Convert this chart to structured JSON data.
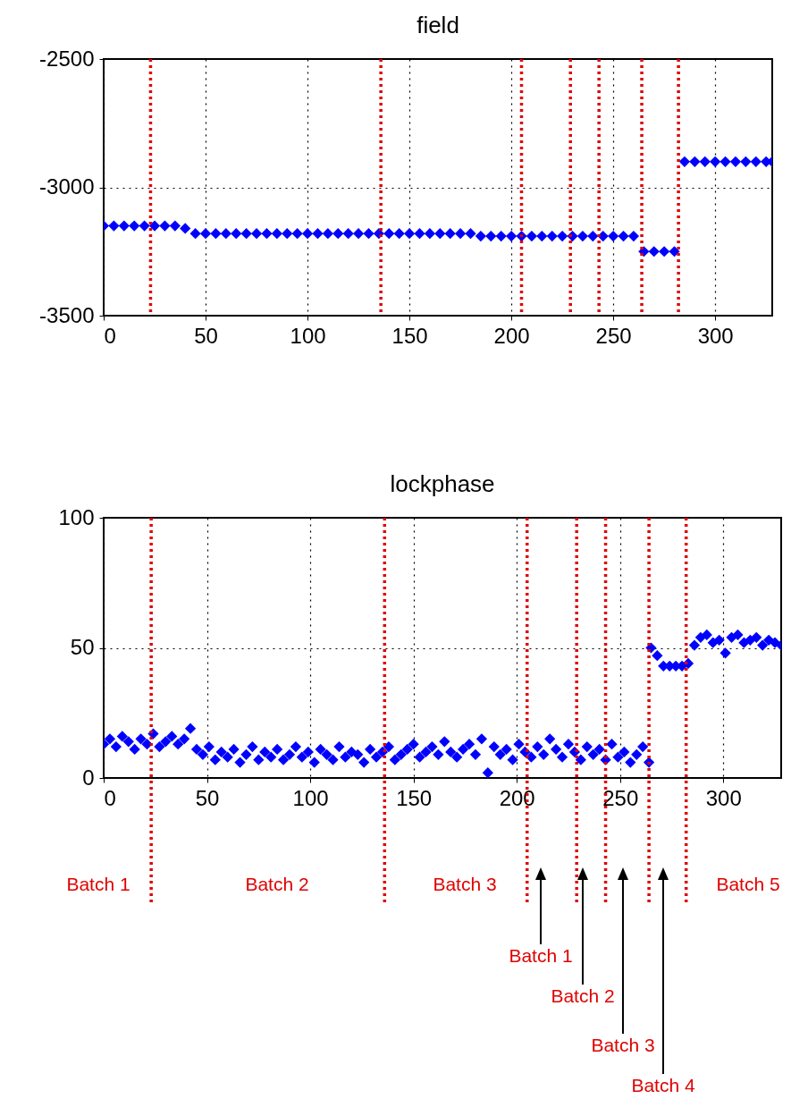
{
  "chart_data": [
    {
      "type": "scatter",
      "title": "field",
      "marker": "diamond",
      "grid": true,
      "xlim": [
        0,
        328
      ],
      "xticks": [
        0,
        50,
        100,
        150,
        200,
        250,
        300
      ],
      "ylim": [
        -3500,
        -2500
      ],
      "yticks": [
        -3500,
        -3000,
        -2500
      ],
      "series": [
        {
          "color": "#0000ff",
          "x": [
            0,
            5,
            10,
            15,
            20,
            25,
            30,
            35,
            40,
            45,
            50,
            55,
            60,
            65,
            70,
            75,
            80,
            85,
            90,
            95,
            100,
            105,
            110,
            115,
            120,
            125,
            130,
            135,
            140,
            145,
            150,
            155,
            160,
            165,
            170,
            175,
            180,
            185,
            190,
            195,
            200,
            205,
            210,
            215,
            220,
            225,
            230,
            235,
            240,
            245,
            250,
            255,
            260,
            265,
            270,
            275,
            280,
            285,
            290,
            295,
            300,
            305,
            310,
            315,
            320,
            325,
            328
          ],
          "values": [
            -3150,
            -3150,
            -3150,
            -3150,
            -3150,
            -3150,
            -3150,
            -3150,
            -3160,
            -3180,
            -3180,
            -3180,
            -3180,
            -3180,
            -3180,
            -3180,
            -3180,
            -3180,
            -3180,
            -3180,
            -3180,
            -3180,
            -3180,
            -3180,
            -3180,
            -3180,
            -3180,
            -3180,
            -3180,
            -3180,
            -3180,
            -3180,
            -3180,
            -3180,
            -3180,
            -3180,
            -3180,
            -3190,
            -3190,
            -3190,
            -3190,
            -3190,
            -3190,
            -3190,
            -3190,
            -3190,
            -3190,
            -3190,
            -3190,
            -3190,
            -3190,
            -3190,
            -3190,
            -3250,
            -3250,
            -3250,
            -3250,
            -2900,
            -2900,
            -2900,
            -2900,
            -2900,
            -2900,
            -2900,
            -2900,
            -2900,
            -2900
          ]
        }
      ],
      "ref_lines": [
        {
          "axis": "x",
          "value": 23,
          "color": "#e00000",
          "line_style": "dotted"
        },
        {
          "axis": "x",
          "value": 136,
          "color": "#e00000",
          "line_style": "dotted"
        },
        {
          "axis": "x",
          "value": 205,
          "color": "#e00000",
          "line_style": "dotted"
        },
        {
          "axis": "x",
          "value": 229,
          "color": "#e00000",
          "line_style": "dotted"
        },
        {
          "axis": "x",
          "value": 243,
          "color": "#e00000",
          "line_style": "dotted"
        },
        {
          "axis": "x",
          "value": 264,
          "color": "#e00000",
          "line_style": "dotted"
        },
        {
          "axis": "x",
          "value": 282,
          "color": "#e00000",
          "line_style": "dotted"
        }
      ]
    },
    {
      "type": "scatter",
      "title": "lockphase",
      "marker": "diamond",
      "grid": true,
      "xlim": [
        0,
        328
      ],
      "xticks": [
        0,
        50,
        100,
        150,
        200,
        250,
        300
      ],
      "ylim": [
        0,
        100
      ],
      "yticks": [
        0,
        50,
        100
      ],
      "series": [
        {
          "color": "#0000ff",
          "x": [
            0,
            3,
            6,
            9,
            12,
            15,
            18,
            21,
            24,
            27,
            30,
            33,
            36,
            39,
            42,
            45,
            48,
            51,
            54,
            57,
            60,
            63,
            66,
            69,
            72,
            75,
            78,
            81,
            84,
            87,
            90,
            93,
            96,
            99,
            102,
            105,
            108,
            111,
            114,
            117,
            120,
            123,
            126,
            129,
            132,
            135,
            138,
            141,
            144,
            147,
            150,
            153,
            156,
            159,
            162,
            165,
            168,
            171,
            174,
            177,
            180,
            183,
            186,
            189,
            192,
            195,
            198,
            201,
            204,
            207,
            210,
            213,
            216,
            219,
            222,
            225,
            228,
            231,
            234,
            237,
            240,
            243,
            246,
            249,
            252,
            255,
            258,
            261,
            264,
            265,
            268,
            271,
            274,
            277,
            280,
            283,
            286,
            289,
            292,
            295,
            298,
            301,
            304,
            307,
            310,
            313,
            316,
            319,
            322,
            325,
            328
          ],
          "values": [
            13,
            15,
            12,
            16,
            14,
            11,
            15,
            13,
            17,
            12,
            14,
            16,
            13,
            15,
            19,
            11,
            9,
            12,
            7,
            10,
            8,
            11,
            6,
            9,
            12,
            7,
            10,
            8,
            11,
            7,
            9,
            12,
            8,
            10,
            6,
            11,
            9,
            7,
            12,
            8,
            10,
            9,
            6,
            11,
            8,
            10,
            12,
            7,
            9,
            11,
            13,
            8,
            10,
            12,
            9,
            14,
            10,
            8,
            11,
            13,
            9,
            15,
            2,
            12,
            9,
            11,
            7,
            13,
            10,
            8,
            12,
            9,
            15,
            11,
            8,
            13,
            10,
            7,
            12,
            9,
            11,
            7,
            13,
            8,
            10,
            6,
            9,
            12,
            6,
            50,
            47,
            43,
            43,
            43,
            43,
            44,
            51,
            54,
            55,
            52,
            53,
            48,
            54,
            55,
            52,
            53,
            54,
            51,
            53,
            52,
            51
          ]
        }
      ],
      "ref_lines": [
        {
          "axis": "x",
          "value": 23,
          "color": "#e00000",
          "line_style": "dotted"
        },
        {
          "axis": "x",
          "value": 136,
          "color": "#e00000",
          "line_style": "dotted"
        },
        {
          "axis": "x",
          "value": 205,
          "color": "#e00000",
          "line_style": "dotted"
        },
        {
          "axis": "x",
          "value": 229,
          "color": "#e00000",
          "line_style": "dotted"
        },
        {
          "axis": "x",
          "value": 243,
          "color": "#e00000",
          "line_style": "dotted"
        },
        {
          "axis": "x",
          "value": 264,
          "color": "#e00000",
          "line_style": "dotted"
        },
        {
          "axis": "x",
          "value": 282,
          "color": "#e00000",
          "line_style": "dotted"
        }
      ],
      "annotations": [
        "Batch 1",
        "Batch 2",
        "Batch 3",
        "Batch 5",
        "Batch 1",
        "Batch 2",
        "Batch 3",
        "Batch 4"
      ]
    }
  ]
}
